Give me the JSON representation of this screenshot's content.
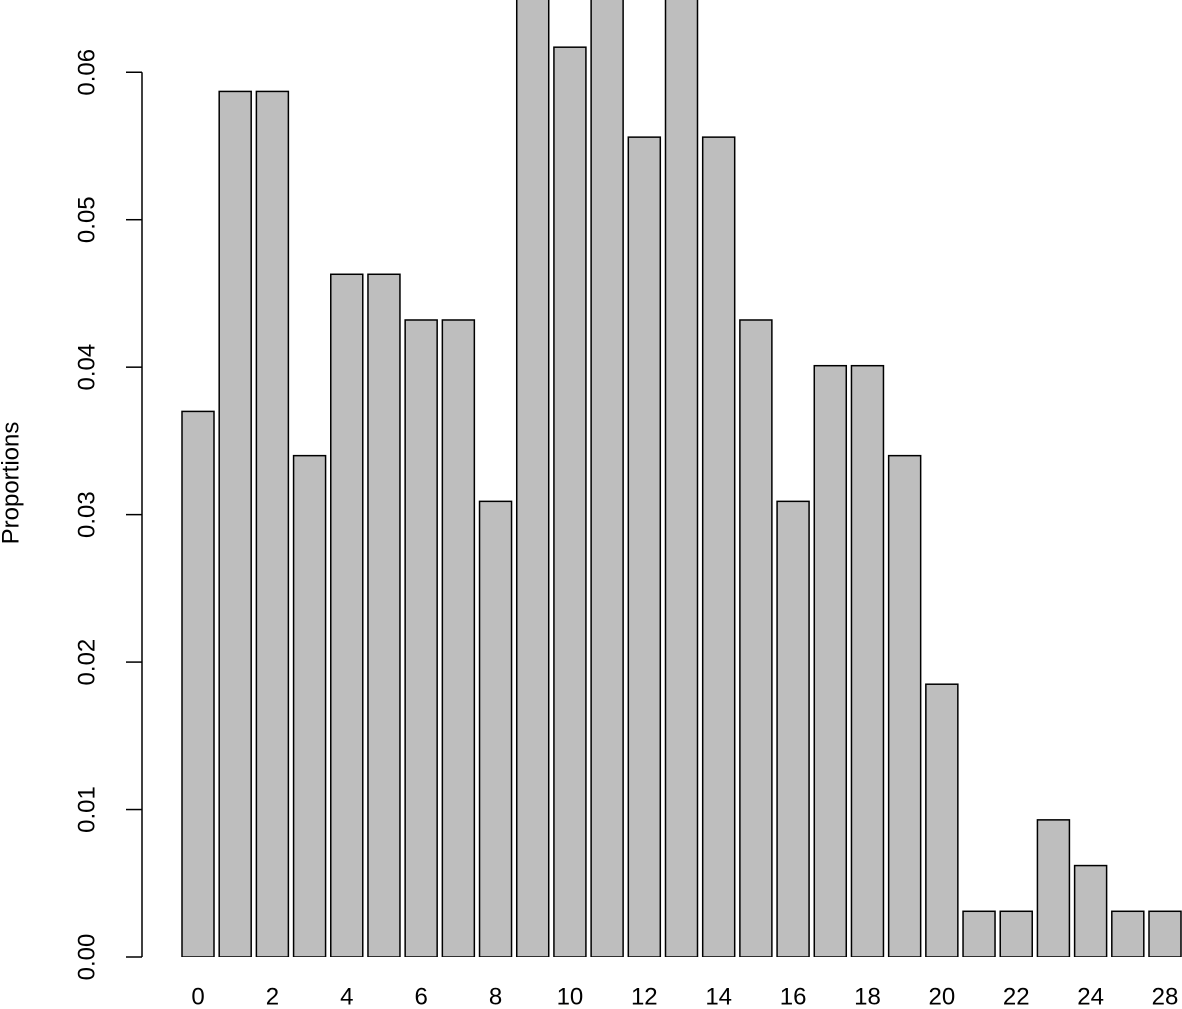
{
  "chart_data": {
    "type": "bar",
    "y_label": "Proportions",
    "categories": [
      "0",
      null,
      "2",
      null,
      "4",
      null,
      "6",
      null,
      "8",
      null,
      "10",
      null,
      "12",
      null,
      "14",
      null,
      "16",
      null,
      "18",
      null,
      "20",
      null,
      "22",
      null,
      "24",
      null,
      "28"
    ],
    "values": [
      0.037,
      0.0587,
      0.0587,
      0.034,
      0.0463,
      0.0463,
      0.0432,
      0.0432,
      0.0309,
      0.068,
      0.0617,
      0.068,
      0.0556,
      0.068,
      0.0556,
      0.0432,
      0.0309,
      0.0401,
      0.0401,
      0.034,
      0.0185,
      0.0031,
      0.0031,
      0.0093,
      0.0062,
      0.0031,
      0.0031
    ],
    "color": "#bebebe",
    "ylim": [
      0,
      0.0649
    ],
    "yticks": [
      {
        "value": 0,
        "label": "0.00"
      },
      {
        "value": 0.01,
        "label": "0.01"
      },
      {
        "value": 0.02,
        "label": "0.02"
      },
      {
        "value": 0.03,
        "label": "0.03"
      },
      {
        "value": 0.04,
        "label": "0.04"
      },
      {
        "value": 0.05,
        "label": "0.05"
      },
      {
        "value": 0.06,
        "label": "0.06"
      }
    ]
  }
}
